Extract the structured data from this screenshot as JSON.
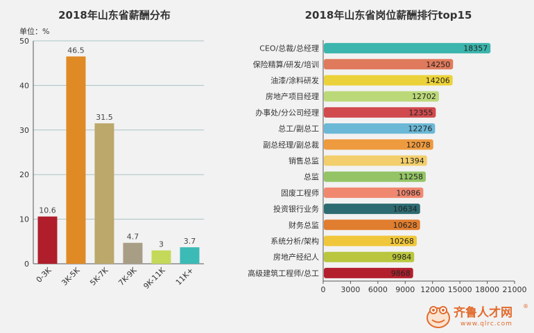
{
  "chart_data": [
    {
      "type": "bar",
      "title": "2018年山东省薪酬分布",
      "unit_label": "单位：%",
      "categories": [
        "0-3K",
        "3K-5K",
        "5K-7K",
        "7K-9K",
        "9K-11K",
        "11K+"
      ],
      "values": [
        10.6,
        46.5,
        31.5,
        4.7,
        3,
        3.7
      ],
      "value_labels": [
        "10.6",
        "46.5",
        "31.5",
        "4.7",
        "3",
        "3.7"
      ],
      "colors": [
        "#b01e2b",
        "#e08a25",
        "#bba86a",
        "#a89e86",
        "#c4d95a",
        "#3bbab6"
      ],
      "ylim": [
        0,
        50
      ],
      "yticks": [
        "0",
        "10",
        "20",
        "30",
        "40",
        "50"
      ],
      "grid": true
    },
    {
      "type": "bar",
      "orientation": "horizontal",
      "title": "2018年山东省岗位薪酬排行top15",
      "categories": [
        "CEO/总裁/总经理",
        "保险精算/研发/培训",
        "油漆/涂料研发",
        "房地产项目经理",
        "办事处/分公司经理",
        "总工/副总工",
        "副总经理/副总裁",
        "销售总监",
        "总监",
        "固废工程师",
        "投资银行业务",
        "财务总监",
        "系统分析/架构",
        "房地产经纪人",
        "高级建筑工程师/总工"
      ],
      "values": [
        18357,
        14250,
        14206,
        12702,
        12355,
        12276,
        12078,
        11394,
        11258,
        10986,
        10634,
        10628,
        10268,
        9984,
        9868
      ],
      "value_labels": [
        "18357",
        "14250",
        "14206",
        "12702",
        "12355",
        "12276",
        "12078",
        "11394",
        "11258",
        "10986",
        "10634",
        "10628",
        "10268",
        "9984",
        "9868"
      ],
      "colors": [
        "#3bb5ad",
        "#e07a5c",
        "#ecd23a",
        "#bcd97a",
        "#d04a4e",
        "#6bb8d6",
        "#ee9a3e",
        "#f2cf6c",
        "#94c466",
        "#f08870",
        "#2d6b72",
        "#e07d2e",
        "#f0c63a",
        "#b9c63e",
        "#b31f2d"
      ],
      "xlim": [
        0,
        21000
      ],
      "xticks": [
        "0",
        "3000",
        "6000",
        "9000",
        "12000",
        "15000",
        "18000",
        "21000"
      ],
      "grid": false
    }
  ],
  "logo": {
    "name": "齐鲁人才网",
    "url": "www.qlrc.com",
    "registered": "®"
  }
}
